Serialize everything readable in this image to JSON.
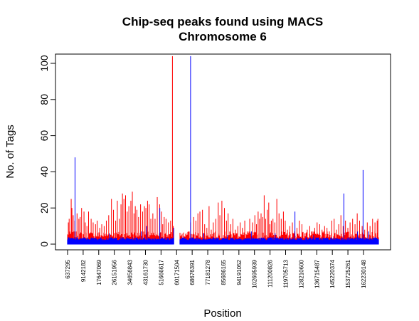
{
  "chart_data": {
    "type": "bar",
    "title": "Chip-seq peaks found using MACS",
    "subtitle": "Chromosome 6",
    "xlabel": "Position",
    "ylabel": "No. of Tags",
    "ylim": [
      0,
      100
    ],
    "yticks": [
      0,
      20,
      40,
      60,
      80,
      100
    ],
    "xlim": [
      637295,
      170400000
    ],
    "xticks": [
      637295,
      9142182,
      17647069,
      26151956,
      34656843,
      43161730,
      51666617,
      60171504,
      68676391,
      77181278,
      85686165,
      94191052,
      102695939,
      111200826,
      119705713,
      128210600,
      136715487,
      145220374,
      153725261,
      162230148
    ],
    "xtick_labels": [
      "637295",
      "9142182",
      "17647069",
      "26151956",
      "34656843",
      "43161730",
      "51666617",
      "60171504",
      "68676391",
      "77181278",
      "85686165",
      "94191052",
      "102695939",
      "111200826",
      "119705713",
      "128210600",
      "136715487",
      "145220374",
      "153725261",
      "162230148"
    ],
    "grid": false,
    "gap": [
      58600000,
      62000000
    ],
    "series": [
      {
        "color": "#ff0000",
        "x": [
          1050000,
          1500000,
          2600000,
          3000000,
          3700000,
          4600000,
          5800000,
          6800000,
          7500000,
          8300000,
          9600000,
          10300000,
          11200000,
          12100000,
          13500000,
          14600000,
          15900000,
          16800000,
          18200000,
          19300000,
          20600000,
          21800000,
          23100000,
          24600000,
          25700000,
          26900000,
          27800000,
          28900000,
          29800000,
          30600000,
          31400000,
          32300000,
          33200000,
          34100000,
          35200000,
          36000000,
          36900000,
          37600000,
          38500000,
          39400000,
          40500000,
          41600000,
          42600000,
          43400000,
          44300000,
          45200000,
          46100000,
          47200000,
          48400000,
          49600000,
          50900000,
          51900000,
          52600000,
          53400000,
          54400000,
          55700000,
          56900000,
          57900000,
          58300000,
          62700000,
          63900000,
          65300000,
          66600000,
          67800000,
          69500000,
          70700000,
          71800000,
          72900000,
          74300000,
          75500000,
          76700000,
          77900000,
          79100000,
          80200000,
          81600000,
          82900000,
          83800000,
          84900000,
          86300000,
          87400000,
          88300000,
          89700000,
          90900000,
          92300000,
          93600000,
          94900000,
          96100000,
          97400000,
          98700000,
          100100000,
          101600000,
          102900000,
          103800000,
          104700000,
          105500000,
          106300000,
          107200000,
          108000000,
          108800000,
          109700000,
          110500000,
          111100000,
          111900000,
          112800000,
          113800000,
          114900000,
          116100000,
          117300000,
          118500000,
          119500000,
          120700000,
          122000000,
          123400000,
          124600000,
          125900000,
          127200000,
          128600000,
          130000000,
          131500000,
          132900000,
          134200000,
          135600000,
          136900000,
          138300000,
          139600000,
          141000000,
          142300000,
          143600000,
          144900000,
          146200000,
          147500000,
          148700000,
          149900000,
          151100000,
          152400000,
          153700000,
          154900000,
          156300000,
          157600000,
          158800000,
          160100000,
          161500000,
          162900000,
          164300000,
          165800000,
          167200000,
          168500000,
          169700000,
          170100000
        ],
        "values": [
          12,
          14,
          25,
          20,
          16,
          13,
          17,
          14,
          15,
          20,
          18,
          12,
          10,
          18,
          14,
          12,
          11,
          13,
          9,
          11,
          10,
          13,
          16,
          25,
          19,
          13,
          24,
          14,
          22,
          28,
          25,
          27,
          18,
          21,
          24,
          29,
          17,
          21,
          19,
          15,
          22,
          18,
          21,
          20,
          24,
          22,
          14,
          17,
          14,
          26,
          22,
          18,
          11,
          15,
          14,
          12,
          13,
          104,
          10,
          5,
          4,
          6,
          7,
          12,
          15,
          13,
          17,
          18,
          19,
          11,
          9,
          21,
          8,
          12,
          14,
          23,
          16,
          24,
          20,
          13,
          17,
          11,
          14,
          8,
          10,
          12,
          9,
          13,
          7,
          14,
          12,
          16,
          11,
          18,
          14,
          17,
          15,
          27,
          14,
          19,
          23,
          11,
          13,
          14,
          12,
          25,
          17,
          14,
          18,
          13,
          8,
          10,
          12,
          7,
          9,
          13,
          11,
          6,
          8,
          10,
          7,
          9,
          12,
          11,
          8,
          10,
          9,
          7,
          13,
          14,
          8,
          11,
          16,
          10,
          13,
          9,
          12,
          14,
          11,
          17,
          13,
          10,
          8,
          12,
          10,
          14,
          12,
          13,
          14
        ]
      },
      {
        "color": "#0000ff",
        "x": [
          4700000,
          23500000,
          41000000,
          43800000,
          51000000,
          58600000,
          67800000,
          75000000,
          88000000,
          101000000,
          114000000,
          124800000,
          135000000,
          151500000,
          159000000,
          162000000,
          165000000
        ],
        "values": [
          48,
          6,
          7,
          10,
          20,
          9,
          104,
          6,
          5,
          7,
          6,
          18,
          5,
          28,
          7,
          41,
          7
        ],
        "baseline_range": [
          0,
          3.5
        ]
      }
    ]
  }
}
